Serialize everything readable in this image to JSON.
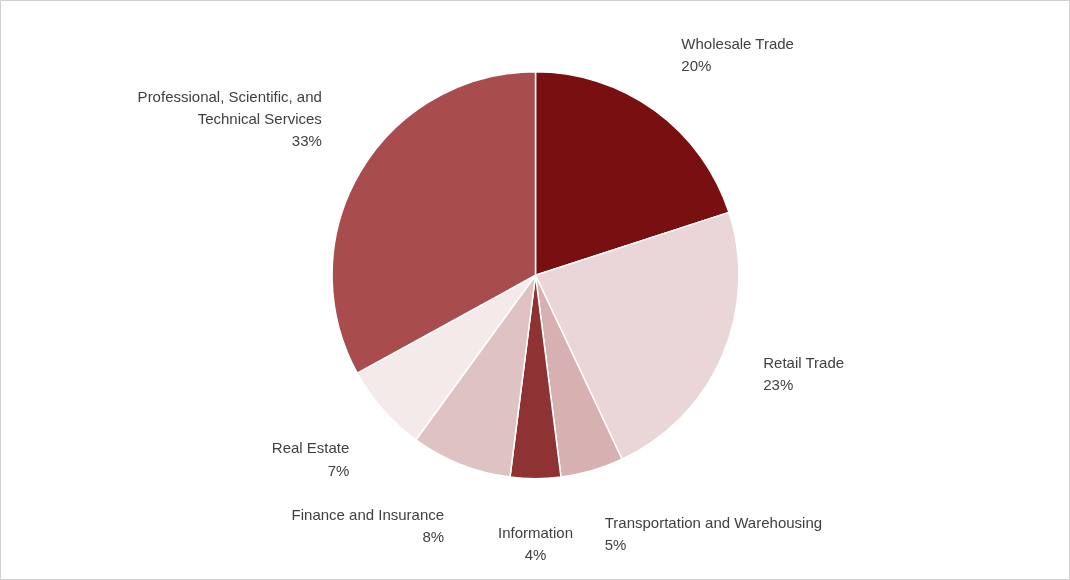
{
  "chart_data": {
    "type": "pie",
    "categories": [
      "Wholesale Trade",
      "Retail Trade",
      "Transportation and Warehousing",
      "Information",
      "Finance and Insurance",
      "Real Estate",
      "Professional, Scientific, and Technical Services"
    ],
    "values": [
      20,
      23,
      5,
      4,
      8,
      7,
      33
    ],
    "colors": [
      "#7a0f12",
      "#ead6d6",
      "#d7b1b1",
      "#8e3234",
      "#dfc2c2",
      "#f4eaea",
      "#a84c4e"
    ],
    "value_labels": [
      "20%",
      "23%",
      "5%",
      "4%",
      "8%",
      "7%",
      "33%"
    ]
  }
}
